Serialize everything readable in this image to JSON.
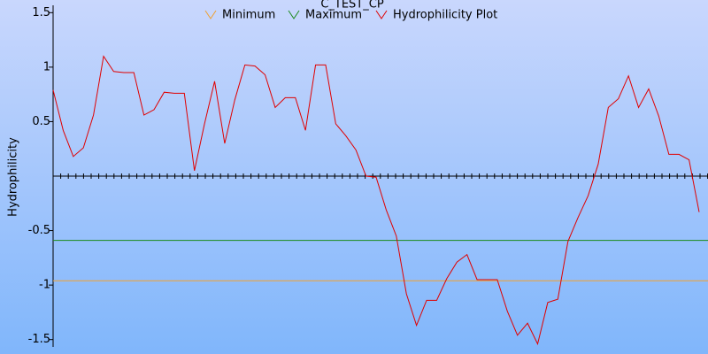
{
  "chart_data": {
    "type": "line",
    "title": "C_TEST_CP",
    "ylabel": "Hydrophilicity",
    "ylim": [
      -1.6,
      1.6
    ],
    "yticks": [
      -1.5,
      -1,
      -0.5,
      0.5,
      1,
      1.5
    ],
    "zero_line": 0,
    "series": [
      {
        "name": "Minimum",
        "color": "#f0a030",
        "value": -0.96
      },
      {
        "name": "Maximum",
        "color": "#1a8a1a",
        "value": -0.59
      },
      {
        "name": "Hydrophilicity Plot",
        "color": "#e00000",
        "values": [
          0.79,
          0.42,
          0.18,
          0.26,
          0.56,
          1.1,
          0.96,
          0.95,
          0.95,
          0.56,
          0.61,
          0.77,
          0.76,
          0.76,
          0.05,
          0.48,
          0.87,
          0.3,
          0.7,
          1.02,
          1.01,
          0.93,
          0.63,
          0.72,
          0.72,
          0.42,
          1.02,
          1.02,
          0.48,
          0.37,
          0.24,
          0.0,
          -0.01,
          -0.31,
          -0.55,
          -1.08,
          -1.37,
          -1.14,
          -1.14,
          -0.94,
          -0.79,
          -0.72,
          -0.95,
          -0.95,
          -0.95,
          -1.24,
          -1.46,
          -1.35,
          -1.54,
          -1.16,
          -1.13,
          -0.6,
          -0.38,
          -0.18,
          0.11,
          0.63,
          0.71,
          0.92,
          0.63,
          0.8,
          0.55,
          0.2,
          0.2,
          0.15,
          -0.33
        ]
      }
    ]
  }
}
